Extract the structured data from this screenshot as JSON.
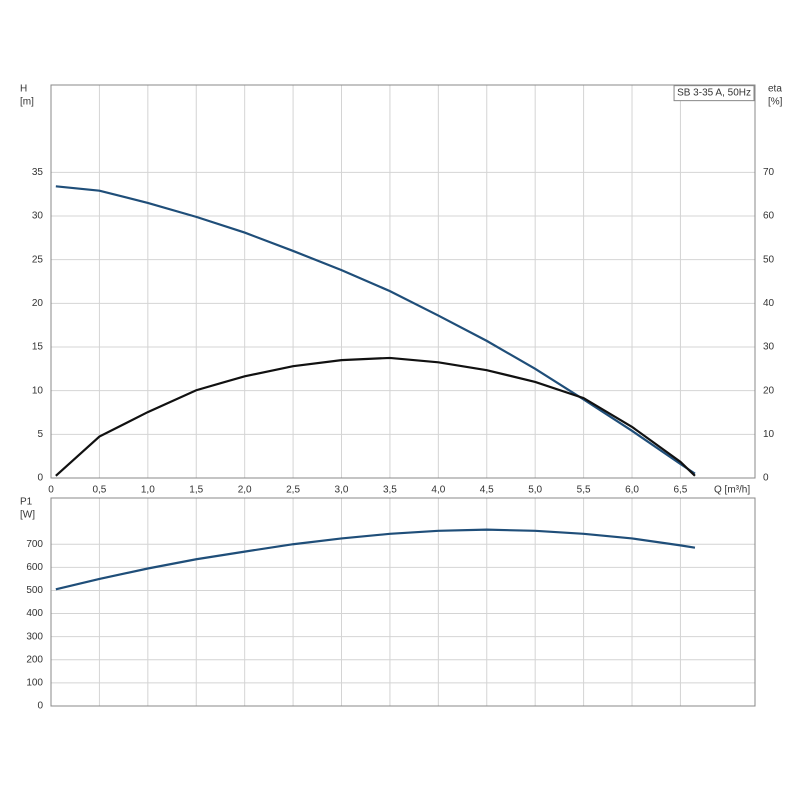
{
  "chart_data": [
    {
      "type": "line",
      "title": "SB 3-35 A, 50Hz",
      "y_label": "H",
      "y_unit": "[m]",
      "y2_label": "eta",
      "y2_unit": "[%]",
      "x_label": "Q [m³/h]",
      "x": [
        0.05,
        0.5,
        1.0,
        1.5,
        2.0,
        2.5,
        3.0,
        3.5,
        4.0,
        4.5,
        5.0,
        5.5,
        6.0,
        6.5,
        6.65
      ],
      "series": [
        {
          "color": "#1f4e79",
          "values": [
            33.4,
            32.9,
            31.5,
            29.9,
            28.1,
            26.0,
            23.8,
            21.4,
            18.6,
            15.7,
            12.5,
            9.0,
            5.4,
            1.6,
            0.5
          ]
        },
        {
          "color": "#111111",
          "axis": "y2",
          "values": [
            0.5,
            9.5,
            15.1,
            20.1,
            23.3,
            25.6,
            27.0,
            27.5,
            26.5,
            24.7,
            22.0,
            18.3,
            11.7,
            3.7,
            0.5
          ]
        }
      ],
      "xlim": [
        0,
        7.27
      ],
      "xticks": [
        0,
        {
          "value": 0.5,
          "label": "0,5"
        },
        {
          "value": 1.0,
          "label": "1,0"
        },
        {
          "value": 1.5,
          "label": "1,5"
        },
        {
          "value": 2.0,
          "label": "2,0"
        },
        {
          "value": 2.5,
          "label": "2,5"
        },
        {
          "value": 3.0,
          "label": "3,0"
        },
        {
          "value": 3.5,
          "label": "3,5"
        },
        {
          "value": 4.0,
          "label": "4,0"
        },
        {
          "value": 4.5,
          "label": "4,5"
        },
        {
          "value": 5.0,
          "label": "5,0"
        },
        {
          "value": 5.5,
          "label": "5,5"
        },
        {
          "value": 6.0,
          "label": "6,0"
        },
        {
          "value": 6.5,
          "label": "6,5"
        }
      ],
      "ylim": [
        0,
        45
      ],
      "yticks": [
        0,
        5,
        10,
        15,
        20,
        25,
        30,
        35
      ],
      "y2lim": [
        0,
        90
      ],
      "y2ticks": [
        0,
        10,
        20,
        30,
        40,
        50,
        60,
        70
      ],
      "grid": true
    },
    {
      "type": "line",
      "y_label": "P1",
      "y_unit": "[W]",
      "x": [
        0.05,
        0.5,
        1.0,
        1.5,
        2.0,
        2.5,
        3.0,
        3.5,
        4.0,
        4.5,
        5.0,
        5.5,
        6.0,
        6.5,
        6.65
      ],
      "series": [
        {
          "color": "#1f4e79",
          "values": [
            505,
            550,
            595,
            635,
            668,
            700,
            725,
            745,
            758,
            763,
            758,
            745,
            725,
            695,
            685
          ]
        }
      ],
      "xlim": [
        0,
        7.27
      ],
      "ylim": [
        0,
        900
      ],
      "yticks": [
        0,
        100,
        200,
        300,
        400,
        500,
        600,
        700
      ],
      "grid": true
    }
  ]
}
